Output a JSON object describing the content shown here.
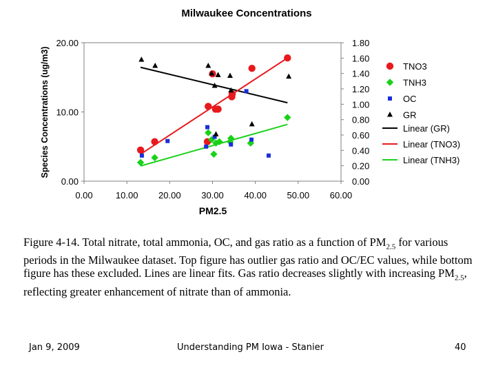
{
  "chart_data": {
    "type": "scatter",
    "title": "Milwaukee Concentrations",
    "xlabel": "PM2.5",
    "ylabel": "Species Concentrations (ug/m3)",
    "xlim": [
      0,
      60
    ],
    "ylim_left": [
      0,
      20
    ],
    "ylim_right": [
      0,
      1.8
    ],
    "x_ticks": [
      "0.00",
      "10.00",
      "20.00",
      "30.00",
      "40.00",
      "50.00",
      "60.00"
    ],
    "y_left_ticks": [
      "0.00",
      "10.00",
      "20.00"
    ],
    "y_right_ticks": [
      "0.00",
      "0.20",
      "0.40",
      "0.60",
      "0.80",
      "1.00",
      "1.20",
      "1.40",
      "1.60",
      "1.80"
    ],
    "grid": false,
    "legend_position": "right",
    "series": [
      {
        "name": "TNO3",
        "marker": "circle",
        "color": "#e8191c",
        "axis": "left",
        "points": [
          [
            13.2,
            4.5
          ],
          [
            16.5,
            5.7
          ],
          [
            28.8,
            5.7
          ],
          [
            29.0,
            10.8
          ],
          [
            30.0,
            15.5
          ],
          [
            30.7,
            10.4
          ],
          [
            31.3,
            10.4
          ],
          [
            34.5,
            12.2
          ],
          [
            34.6,
            12.6
          ],
          [
            39.2,
            16.3
          ],
          [
            47.5,
            17.8
          ]
        ]
      },
      {
        "name": "TNH3",
        "marker": "diamond",
        "color": "#19d119",
        "axis": "left",
        "points": [
          [
            13.2,
            2.7
          ],
          [
            16.5,
            3.4
          ],
          [
            29.0,
            7.0
          ],
          [
            29.8,
            6.0
          ],
          [
            30.3,
            3.9
          ],
          [
            30.8,
            5.5
          ],
          [
            31.6,
            5.7
          ],
          [
            34.1,
            5.7
          ],
          [
            34.3,
            6.2
          ],
          [
            38.9,
            5.5
          ],
          [
            47.5,
            9.2
          ]
        ]
      },
      {
        "name": "OC",
        "marker": "square",
        "color": "#1a2fd6",
        "axis": "left",
        "points": [
          [
            13.5,
            3.7
          ],
          [
            19.5,
            5.8
          ],
          [
            28.5,
            5.0
          ],
          [
            28.8,
            7.8
          ],
          [
            30.5,
            6.4
          ],
          [
            34.3,
            5.3
          ],
          [
            37.9,
            13.0
          ],
          [
            39.1,
            6.0
          ],
          [
            43.1,
            3.7
          ]
        ]
      },
      {
        "name": "GR",
        "marker": "triangle",
        "color": "#000000",
        "axis": "right",
        "points": [
          [
            13.4,
            1.58
          ],
          [
            16.6,
            1.5
          ],
          [
            29.0,
            1.5
          ],
          [
            29.8,
            1.4
          ],
          [
            30.5,
            1.24
          ],
          [
            30.8,
            0.61
          ],
          [
            31.3,
            1.38
          ],
          [
            34.1,
            1.37
          ],
          [
            34.3,
            1.18
          ],
          [
            39.2,
            0.74
          ],
          [
            47.8,
            1.36
          ]
        ]
      }
    ],
    "fits": [
      {
        "name": "Linear (GR)",
        "color": "#000000",
        "axis": "right",
        "points": [
          [
            13.2,
            1.48
          ],
          [
            47.5,
            1.02
          ]
        ]
      },
      {
        "name": "Linear (TNO3)",
        "color": "#e8191c",
        "axis": "left",
        "points": [
          [
            13.2,
            3.9
          ],
          [
            47.5,
            17.8
          ]
        ]
      },
      {
        "name": "Linear (TNH3)",
        "color": "#19d119",
        "axis": "left",
        "points": [
          [
            13.2,
            2.2
          ],
          [
            47.5,
            8.2
          ]
        ]
      }
    ]
  },
  "caption": {
    "part1": "Figure 4-14.  Total nitrate, total ammonia, OC, and gas ratio as a function of PM",
    "sub1": "2.5",
    "part2": " for various periods in the Milwaukee dataset.  Top figure has outlier gas ratio and OC/EC values, while bottom figure has these excluded.  Lines are linear fits.  Gas ratio decreases slightly with increasing PM",
    "sub2": "2.5",
    "part3": ", reflecting greater enhancement of nitrate than of ammonia."
  },
  "footer": {
    "date": "Jan 9, 2009",
    "title": "Understanding PM Iowa - Stanier",
    "page": "40"
  }
}
